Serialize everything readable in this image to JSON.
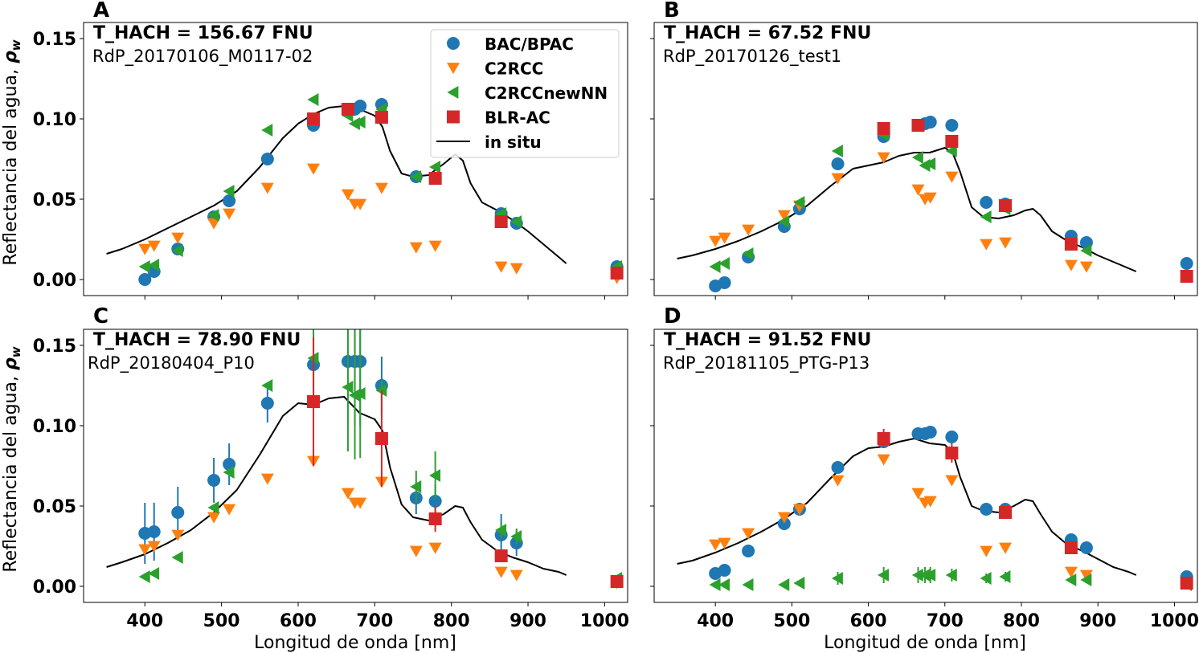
{
  "figure": {
    "xlabel": "Longitud de onda [nm]",
    "ylabel": "Reflectancia del agua, ",
    "ylabel_symbol": "ρ",
    "ylabel_subscript": "w"
  },
  "legend": {
    "entries": [
      {
        "label": "BAC/BPAC",
        "marker": "circle",
        "color": "#1f77b4"
      },
      {
        "label": "C2RCC",
        "marker": "triangle-down",
        "color": "#ff7f0e"
      },
      {
        "label": "C2RCCnewNN",
        "marker": "triangle-left",
        "color": "#2ca02c"
      },
      {
        "label": "BLR-AC",
        "marker": "square",
        "color": "#d62728"
      },
      {
        "label": "in situ",
        "marker": "line",
        "color": "#000000"
      }
    ]
  },
  "chart_data": [
    {
      "panel": "A",
      "type": "scatter",
      "turbidity_label": "T_HACH = 156.67 FNU",
      "station_label": "RdP_20170106_M0117-02",
      "xlim": [
        320,
        1030
      ],
      "ylim": [
        -0.01,
        0.16
      ],
      "xticks": [
        400,
        500,
        600,
        700,
        800,
        900,
        1000
      ],
      "yticks": [
        0.0,
        0.05,
        0.1,
        0.15
      ],
      "ytick_labels": [
        "0.00",
        "0.05",
        "0.10",
        "0.15"
      ],
      "show_xticklabels": false,
      "show_yticklabels": true,
      "show_legend": true,
      "series": [
        {
          "name": "BAC/BPAC",
          "x": [
            400,
            412,
            443,
            490,
            510,
            560,
            620,
            665,
            674,
            681,
            709,
            754,
            779,
            865,
            885,
            1016
          ],
          "y": [
            0.0,
            0.005,
            0.019,
            0.039,
            0.049,
            0.075,
            0.096,
            0.105,
            0.106,
            0.108,
            0.109,
            0.064,
            0.063,
            0.041,
            0.035,
            0.008
          ]
        },
        {
          "name": "C2RCC",
          "x": [
            400,
            412,
            443,
            490,
            510,
            560,
            620,
            665,
            674,
            681,
            709,
            754,
            779,
            865,
            885,
            1016
          ],
          "y": [
            0.019,
            0.021,
            0.026,
            0.035,
            0.041,
            0.057,
            0.069,
            0.053,
            0.047,
            0.047,
            0.057,
            0.02,
            0.021,
            0.008,
            0.007,
            0.001
          ]
        },
        {
          "name": "C2RCCnewNN",
          "x": [
            400,
            412,
            443,
            490,
            510,
            560,
            620,
            665,
            674,
            681,
            709,
            754,
            779,
            865,
            885,
            1016
          ],
          "y": [
            0.008,
            0.009,
            0.018,
            0.04,
            0.055,
            0.093,
            0.112,
            0.102,
            0.097,
            0.098,
            0.106,
            0.064,
            0.07,
            0.041,
            0.036,
            0.008
          ]
        },
        {
          "name": "BLR-AC",
          "x": [
            620,
            665,
            709,
            779,
            865,
            1016
          ],
          "y": [
            0.1,
            0.106,
            0.101,
            0.063,
            0.036,
            0.004
          ]
        },
        {
          "name": "in situ",
          "x": [
            350,
            370,
            400,
            430,
            460,
            490,
            520,
            550,
            580,
            600,
            620,
            640,
            660,
            680,
            700,
            710,
            720,
            735,
            750,
            770,
            790,
            805,
            815,
            825,
            840,
            860,
            880,
            900,
            920,
            940,
            950
          ],
          "y": [
            0.016,
            0.019,
            0.025,
            0.032,
            0.039,
            0.046,
            0.055,
            0.07,
            0.088,
            0.097,
            0.103,
            0.107,
            0.108,
            0.106,
            0.102,
            0.095,
            0.08,
            0.066,
            0.064,
            0.065,
            0.072,
            0.078,
            0.074,
            0.06,
            0.048,
            0.043,
            0.037,
            0.03,
            0.022,
            0.014,
            0.01
          ]
        }
      ]
    },
    {
      "panel": "B",
      "type": "scatter",
      "turbidity_label": "T_HACH = 67.52 FNU",
      "station_label": "RdP_20170126_test1",
      "xlim": [
        320,
        1030
      ],
      "ylim": [
        -0.01,
        0.16
      ],
      "xticks": [
        400,
        500,
        600,
        700,
        800,
        900,
        1000
      ],
      "yticks": [
        0.0,
        0.05,
        0.1,
        0.15
      ],
      "ytick_labels": [
        "0.00",
        "0.05",
        "0.10",
        "0.15"
      ],
      "show_xticklabels": false,
      "show_yticklabels": false,
      "show_legend": false,
      "series": [
        {
          "name": "BAC/BPAC",
          "x": [
            400,
            412,
            443,
            490,
            510,
            560,
            620,
            665,
            674,
            681,
            709,
            754,
            779,
            865,
            885,
            1016
          ],
          "y": [
            -0.004,
            -0.002,
            0.014,
            0.033,
            0.044,
            0.072,
            0.089,
            0.096,
            0.097,
            0.098,
            0.096,
            0.048,
            0.047,
            0.027,
            0.023,
            0.01
          ]
        },
        {
          "name": "C2RCC",
          "x": [
            400,
            412,
            443,
            490,
            510,
            560,
            620,
            665,
            674,
            681,
            709,
            754,
            779,
            865,
            885,
            1016
          ],
          "y": [
            0.024,
            0.026,
            0.031,
            0.04,
            0.046,
            0.063,
            0.076,
            0.056,
            0.05,
            0.051,
            0.064,
            0.022,
            0.023,
            0.009,
            0.008,
            0.002
          ]
        },
        {
          "name": "C2RCCnewNN",
          "x": [
            400,
            412,
            443,
            490,
            510,
            560,
            620,
            665,
            674,
            681,
            709,
            754,
            779,
            865,
            885,
            1016
          ],
          "y": [
            0.008,
            0.01,
            0.016,
            0.036,
            0.048,
            0.08,
            0.09,
            0.076,
            0.071,
            0.072,
            0.08,
            0.039,
            0.044,
            0.022,
            0.018,
            0.002
          ]
        },
        {
          "name": "BLR-AC",
          "x": [
            620,
            665,
            709,
            779,
            865,
            1016
          ],
          "y": [
            0.094,
            0.096,
            0.086,
            0.046,
            0.022,
            0.002
          ]
        },
        {
          "name": "in situ",
          "x": [
            350,
            370,
            400,
            430,
            460,
            490,
            520,
            550,
            580,
            600,
            620,
            640,
            660,
            680,
            700,
            710,
            720,
            735,
            750,
            770,
            790,
            805,
            815,
            825,
            840,
            860,
            880,
            900,
            920,
            940,
            950
          ],
          "y": [
            0.013,
            0.015,
            0.019,
            0.024,
            0.03,
            0.037,
            0.046,
            0.058,
            0.069,
            0.071,
            0.073,
            0.077,
            0.079,
            0.079,
            0.082,
            0.079,
            0.067,
            0.045,
            0.039,
            0.038,
            0.04,
            0.043,
            0.044,
            0.04,
            0.03,
            0.024,
            0.02,
            0.015,
            0.011,
            0.007,
            0.005
          ]
        }
      ]
    },
    {
      "panel": "C",
      "type": "scatter",
      "turbidity_label": "T_HACH = 78.90 FNU",
      "station_label": "RdP_20180404_P10",
      "xlim": [
        320,
        1030
      ],
      "ylim": [
        -0.01,
        0.16
      ],
      "xticks": [
        400,
        500,
        600,
        700,
        800,
        900,
        1000
      ],
      "yticks": [
        0.0,
        0.05,
        0.1,
        0.15
      ],
      "ytick_labels": [
        "0.00",
        "0.05",
        "0.10",
        "0.15"
      ],
      "xtick_labels": [
        "400",
        "500",
        "600",
        "700",
        "800",
        "900",
        "1000"
      ],
      "show_xticklabels": true,
      "show_yticklabels": true,
      "show_legend": false,
      "series": [
        {
          "name": "BAC/BPAC",
          "x": [
            400,
            412,
            443,
            490,
            510,
            560,
            620,
            665,
            674,
            681,
            709,
            754,
            779,
            865,
            885
          ],
          "y": [
            0.033,
            0.034,
            0.046,
            0.066,
            0.076,
            0.114,
            0.138,
            0.14,
            0.14,
            0.14,
            0.125,
            0.055,
            0.053,
            0.032,
            0.027
          ],
          "err": [
            0.019,
            0.018,
            0.016,
            0.014,
            0.013,
            0.012,
            0.015,
            0.04,
            0.04,
            0.04,
            0.018,
            0.01,
            0.01,
            0.013,
            0.008
          ]
        },
        {
          "name": "C2RCC",
          "x": [
            400,
            412,
            443,
            490,
            510,
            560,
            620,
            665,
            674,
            681,
            709,
            754,
            779,
            865,
            885,
            1016
          ],
          "y": [
            0.023,
            0.025,
            0.032,
            0.043,
            0.048,
            0.067,
            0.078,
            0.058,
            0.052,
            0.052,
            0.065,
            0.022,
            0.024,
            0.009,
            0.007,
            0.002
          ]
        },
        {
          "name": "C2RCCnewNN",
          "x": [
            400,
            412,
            443,
            490,
            510,
            560,
            620,
            665,
            674,
            681,
            709,
            754,
            779,
            865,
            885,
            1016
          ],
          "y": [
            0.006,
            0.008,
            0.018,
            0.049,
            0.071,
            0.125,
            0.142,
            0.124,
            0.119,
            0.12,
            0.122,
            0.062,
            0.069,
            0.035,
            0.031,
            0.005
          ],
          "err": [
            0,
            0,
            0,
            0,
            0,
            0,
            0.03,
            0.04,
            0.04,
            0.04,
            0.006,
            0.01,
            0.015,
            0.005,
            0.005,
            0
          ]
        },
        {
          "name": "BLR-AC",
          "x": [
            620,
            709,
            779,
            865,
            1016
          ],
          "y": [
            0.115,
            0.092,
            0.042,
            0.019,
            0.003
          ],
          "err": [
            0.04,
            0.03,
            0.008,
            0,
            0
          ]
        },
        {
          "name": "in situ",
          "x": [
            350,
            370,
            400,
            430,
            460,
            490,
            520,
            550,
            580,
            600,
            620,
            640,
            660,
            680,
            700,
            710,
            720,
            735,
            750,
            770,
            790,
            805,
            815,
            825,
            840,
            860,
            880,
            900,
            920,
            940,
            950
          ],
          "y": [
            0.012,
            0.015,
            0.02,
            0.027,
            0.035,
            0.046,
            0.06,
            0.082,
            0.106,
            0.114,
            0.113,
            0.117,
            0.118,
            0.108,
            0.104,
            0.097,
            0.074,
            0.051,
            0.043,
            0.041,
            0.045,
            0.05,
            0.049,
            0.04,
            0.029,
            0.022,
            0.018,
            0.015,
            0.011,
            0.009,
            0.007
          ]
        }
      ]
    },
    {
      "panel": "D",
      "type": "scatter",
      "turbidity_label": "T_HACH = 91.52 FNU",
      "station_label": "RdP_20181105_PTG-P13",
      "xlim": [
        320,
        1030
      ],
      "ylim": [
        -0.01,
        0.16
      ],
      "xticks": [
        400,
        500,
        600,
        700,
        800,
        900,
        1000
      ],
      "yticks": [
        0.0,
        0.05,
        0.1,
        0.15
      ],
      "ytick_labels": [
        "0.00",
        "0.05",
        "0.10",
        "0.15"
      ],
      "xtick_labels": [
        "400",
        "500",
        "600",
        "700",
        "800",
        "900",
        "1000"
      ],
      "show_xticklabels": true,
      "show_yticklabels": false,
      "show_legend": false,
      "series": [
        {
          "name": "BAC/BPAC",
          "x": [
            400,
            412,
            443,
            490,
            510,
            560,
            620,
            665,
            674,
            681,
            709,
            754,
            779,
            865,
            885,
            1016
          ],
          "y": [
            0.008,
            0.01,
            0.022,
            0.039,
            0.048,
            0.074,
            0.09,
            0.095,
            0.095,
            0.096,
            0.093,
            0.048,
            0.048,
            0.029,
            0.024,
            0.006
          ]
        },
        {
          "name": "C2RCC",
          "x": [
            400,
            412,
            443,
            490,
            510,
            560,
            620,
            665,
            674,
            681,
            709,
            754,
            779,
            865,
            885,
            1016
          ],
          "y": [
            0.026,
            0.027,
            0.033,
            0.043,
            0.048,
            0.066,
            0.079,
            0.058,
            0.052,
            0.053,
            0.066,
            0.022,
            0.024,
            0.009,
            0.007,
            0.002
          ]
        },
        {
          "name": "C2RCCnewNN",
          "x": [
            400,
            412,
            443,
            490,
            510,
            560,
            620,
            665,
            674,
            681,
            709,
            754,
            779,
            865,
            885,
            1016
          ],
          "y": [
            0.001,
            0.001,
            0.001,
            0.001,
            0.002,
            0.005,
            0.007,
            0.007,
            0.007,
            0.007,
            0.007,
            0.005,
            0.006,
            0.004,
            0.004,
            0.001
          ],
          "err": [
            0,
            0,
            0,
            0,
            0,
            0.004,
            0.005,
            0.005,
            0.005,
            0.005,
            0.004,
            0.003,
            0.003,
            0.002,
            0.002,
            0
          ]
        },
        {
          "name": "BLR-AC",
          "x": [
            620,
            709,
            779,
            865,
            1016
          ],
          "y": [
            0.092,
            0.083,
            0.046,
            0.024,
            0.002
          ],
          "err": [
            0.006,
            0.006,
            0,
            0,
            0
          ]
        },
        {
          "name": "in situ",
          "x": [
            350,
            370,
            400,
            430,
            460,
            490,
            520,
            550,
            580,
            600,
            620,
            640,
            660,
            680,
            700,
            710,
            720,
            735,
            750,
            770,
            790,
            805,
            815,
            825,
            840,
            860,
            880,
            900,
            920,
            940,
            950
          ],
          "y": [
            0.014,
            0.016,
            0.021,
            0.027,
            0.034,
            0.042,
            0.052,
            0.067,
            0.081,
            0.086,
            0.087,
            0.09,
            0.092,
            0.089,
            0.088,
            0.084,
            0.068,
            0.05,
            0.047,
            0.046,
            0.05,
            0.054,
            0.053,
            0.045,
            0.034,
            0.026,
            0.022,
            0.017,
            0.012,
            0.009,
            0.007
          ]
        }
      ]
    }
  ]
}
